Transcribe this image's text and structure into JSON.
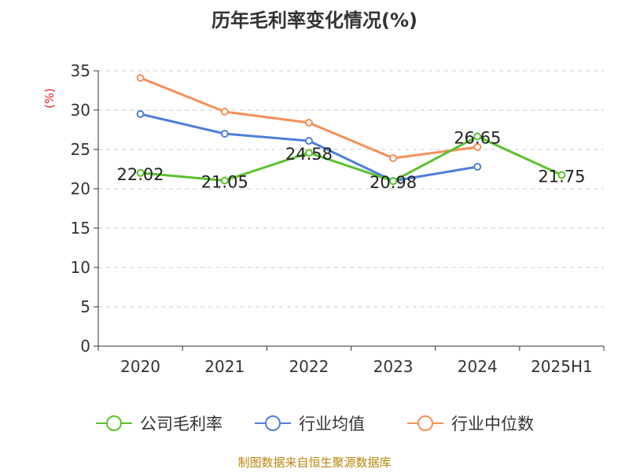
{
  "chart_data": {
    "type": "line",
    "title": "历年毛利率变化情况(%)",
    "ylabel": "(%)",
    "xlabel": "",
    "categories": [
      "2020",
      "2021",
      "2022",
      "2023",
      "2024",
      "2025H1"
    ],
    "ylim": [
      0,
      35
    ],
    "yticks": [
      0,
      5,
      10,
      15,
      20,
      25,
      30,
      35
    ],
    "grid": true,
    "legend_position": "bottom",
    "series": [
      {
        "name": "公司毛利率",
        "color": "#5cc22f",
        "values": [
          22.02,
          21.05,
          24.58,
          20.98,
          26.65,
          21.75
        ],
        "show_labels": true
      },
      {
        "name": "行业均值",
        "color": "#4f7fdc",
        "values": [
          29.5,
          27.0,
          26.1,
          21.0,
          22.8,
          null
        ],
        "show_labels": false
      },
      {
        "name": "行业中位数",
        "color": "#f58f5a",
        "values": [
          34.1,
          29.8,
          28.4,
          23.9,
          25.3,
          null
        ],
        "show_labels": false
      }
    ]
  },
  "source": "制图数据来自恒生聚源数据库"
}
